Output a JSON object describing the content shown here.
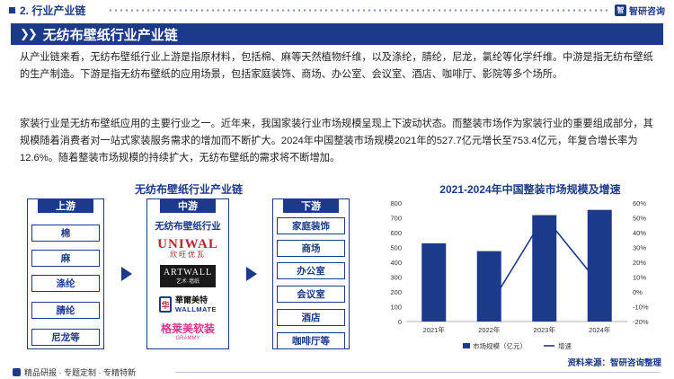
{
  "header": {
    "section_title": "2. 行业产业链",
    "logo_text": "智研咨询",
    "logo_mark": "智"
  },
  "banner": {
    "title": "无纺布壁纸行业产业链"
  },
  "paragraphs": {
    "p1": "从产业链来看，无纺布壁纸行业上游是指原材料，包括棉、麻等天然植物纤维，以及涤纶，腈纶，尼龙，氯纶等化学纤维。中游是指无纺布壁纸的生产制造。下游是指无纺布壁纸的应用场景，包括家庭装饰、商场、办公室、会议室、酒店、咖啡厅、影院等多个场所。",
    "p2": "家装行业是无纺布壁纸应用的主要行业之一。近年来，我国家装行业市场规模呈现上下波动状态。而整装市场作为家装行业的重要组成部分，其规模随着消费者对一站式家装服务需求的增加而不断扩大。2024年中国整装市场规模2021年的527.7亿元增长至753.4亿元，年复合增长率为12.6%。随着整装市场规模的持续扩大，无纺布壁纸的需求将不断增加。"
  },
  "chain": {
    "title": "无纺布壁纸行业产业链",
    "upstream": {
      "label": "上游",
      "items": [
        "棉",
        "麻",
        "涤纶",
        "腈纶",
        "尼龙等"
      ]
    },
    "midstream": {
      "label": "中游",
      "sub_label": "无纺布壁纸行业",
      "brands": [
        {
          "line1": "UNIWAL",
          "line2": "欣旺优瓦"
        },
        {
          "line1": "ARTWALL",
          "line2": "艺术·墙纸"
        },
        {
          "mark": "华",
          "line1": "華爾美特",
          "line2": "WALLMATE"
        },
        {
          "line1": "格莱美软装",
          "line2": "GRAMMY"
        }
      ]
    },
    "downstream": {
      "label": "下游",
      "items": [
        "家庭装饰",
        "商场",
        "办公室",
        "会议室",
        "酒店",
        "咖啡厅等"
      ]
    }
  },
  "chart_data": {
    "type": "bar",
    "title": "2021-2024年中国整装市场规模及增速",
    "categories": [
      "2021年",
      "2022年",
      "2023年",
      "2024年"
    ],
    "series": [
      {
        "name": "市场规模（亿元）",
        "type": "bar",
        "axis": "left",
        "values": [
          527.7,
          475,
          718,
          753.4
        ],
        "color": "#1b3a8a"
      },
      {
        "name": "增速",
        "type": "line",
        "axis": "right",
        "values": [
          null,
          -10,
          51,
          5
        ],
        "color": "#1b3a8a"
      }
    ],
    "ylim": [
      0,
      800
    ],
    "yticks": [
      "0",
      "100",
      "200",
      "300",
      "400",
      "500",
      "600",
      "700",
      "800"
    ],
    "y2lim": [
      -20,
      60
    ],
    "y2ticks": [
      "-20%",
      "-10%",
      "0%",
      "10%",
      "20%",
      "30%",
      "40%",
      "50%",
      "60%"
    ],
    "legend_position": "bottom",
    "grid": false
  },
  "source": "资料来源：智研咨询整理",
  "footer": {
    "text": "精品研报 · 专题定制 · 专精特新"
  },
  "colors": {
    "primary": "#1b3a8a"
  }
}
